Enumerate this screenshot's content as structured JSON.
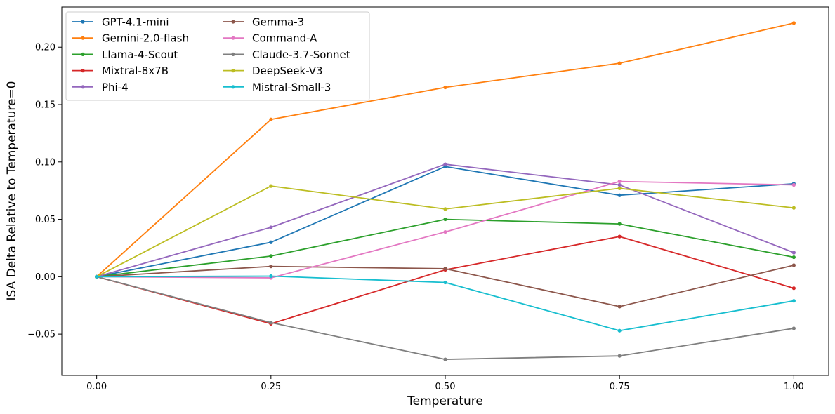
{
  "chart_data": {
    "type": "line",
    "title": "",
    "xlabel": "Temperature",
    "ylabel": "ISA Delta Relative to Temperature=0",
    "x": [
      0.0,
      0.25,
      0.5,
      0.75,
      1.0
    ],
    "x_tick_labels": [
      "0.00",
      "0.25",
      "0.50",
      "0.75",
      "1.00"
    ],
    "xlim": [
      -0.05,
      1.05
    ],
    "y_ticks": [
      -0.05,
      0.0,
      0.05,
      0.1,
      0.15,
      0.2
    ],
    "y_tick_labels": [
      "−0.05",
      "0.00",
      "0.05",
      "0.10",
      "0.15",
      "0.20"
    ],
    "ylim": [
      -0.086,
      0.235
    ],
    "grid": false,
    "legend": {
      "position": "top-left",
      "columns": 2
    },
    "series": [
      {
        "name": "GPT-4.1-mini",
        "color": "#1f77b4",
        "values": [
          0,
          0.03,
          0.096,
          0.071,
          0.081
        ]
      },
      {
        "name": "Gemini-2.0-flash",
        "color": "#ff7f0e",
        "values": [
          0,
          0.137,
          0.165,
          0.186,
          0.221
        ]
      },
      {
        "name": "Llama-4-Scout",
        "color": "#2ca02c",
        "values": [
          0,
          0.018,
          0.05,
          0.046,
          0.017
        ]
      },
      {
        "name": "Mixtral-8x7B",
        "color": "#d62728",
        "values": [
          0,
          -0.041,
          0.006,
          0.035,
          -0.01
        ]
      },
      {
        "name": "Phi-4",
        "color": "#9467bd",
        "values": [
          0,
          0.043,
          0.098,
          0.08,
          0.021
        ]
      },
      {
        "name": "Gemma-3",
        "color": "#8c564b",
        "values": [
          0,
          0.009,
          0.007,
          -0.026,
          0.01
        ]
      },
      {
        "name": "Command-A",
        "color": "#e377c2",
        "values": [
          0,
          -0.001,
          0.039,
          0.083,
          0.08
        ]
      },
      {
        "name": "Claude-3.7-Sonnet",
        "color": "#7f7f7f",
        "values": [
          0,
          -0.04,
          -0.072,
          -0.069,
          -0.045
        ]
      },
      {
        "name": "DeepSeek-V3",
        "color": "#bcbd22",
        "values": [
          0,
          0.079,
          0.059,
          0.077,
          0.06
        ]
      },
      {
        "name": "Mistral-Small-3",
        "color": "#17becf",
        "values": [
          0,
          0.0005,
          -0.005,
          -0.047,
          -0.021
        ]
      }
    ]
  }
}
